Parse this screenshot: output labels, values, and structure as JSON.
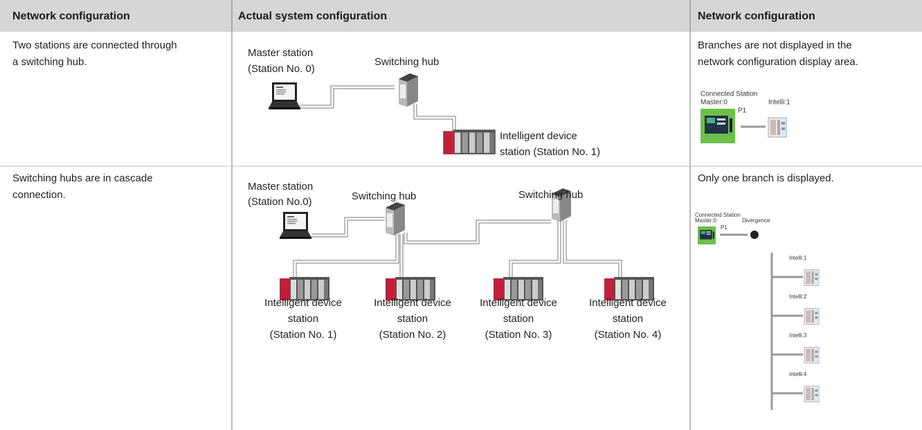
{
  "header": [
    "Network configuration",
    "Actual system configuration",
    "Network configuration"
  ],
  "rows": [
    {
      "description": [
        "Two stations are connected through",
        "a switching hub."
      ],
      "diagram": {
        "master": [
          "Master station",
          "(Station No. 0)"
        ],
        "hubs": [
          "Switching hub"
        ],
        "stations": [
          [
            "Intelligent device",
            "station (Station No. 1)"
          ]
        ]
      },
      "display": {
        "note": [
          "Branches are not displayed in the",
          "network configuration display area."
        ],
        "panel_title": "Connected Station",
        "master": "Master:0",
        "port": "P1",
        "stations": [
          "Intelli:1"
        ]
      }
    },
    {
      "description": [
        "Switching hubs are in cascade",
        "connection."
      ],
      "diagram": {
        "master": [
          "Master station",
          "(Station No.0)"
        ],
        "hubs": [
          "Switching hub",
          "Switching hub"
        ],
        "stations": [
          [
            "Intelligent device",
            "station",
            "(Station No. 1)"
          ],
          [
            "Intelligent device",
            "station",
            "(Station No. 2)"
          ],
          [
            "Intelligent device",
            "station",
            "(Station No. 3)"
          ],
          [
            "Intelligent device",
            "station",
            "(Station No. 4)"
          ]
        ]
      },
      "display": {
        "note": [
          "Only one branch is displayed."
        ],
        "panel_title": "Connected Station",
        "master": "Master:0",
        "divergence": "Divergence",
        "port": "P1",
        "stations": [
          "Intelli:1",
          "Intelli:2",
          "Intelli:3",
          "Intelli:4"
        ]
      }
    }
  ]
}
